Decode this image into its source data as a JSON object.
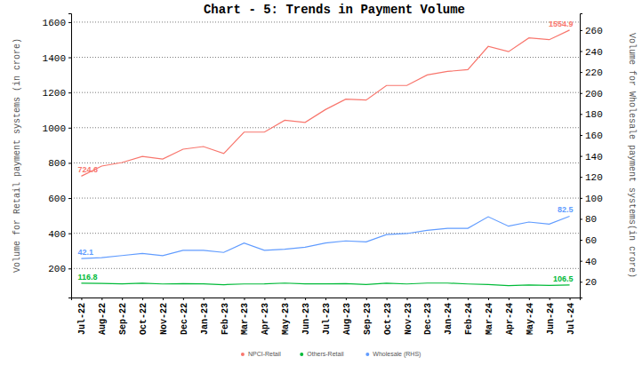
{
  "chart_data": {
    "type": "line",
    "title": "Chart - 5: Trends in Payment Volume",
    "y_label": "Volume for Retail payment systems (in crore)",
    "y2_label": "Volume for Wholesale payment systems(in crore)",
    "categories": [
      "Jul-22",
      "Aug-22",
      "Sep-22",
      "Oct-22",
      "Nov-22",
      "Dec-22",
      "Jan-23",
      "Feb-23",
      "Mar-23",
      "Apr-23",
      "May-23",
      "Jun-23",
      "Jul-23",
      "Aug-23",
      "Sep-23",
      "Oct-23",
      "Nov-23",
      "Dec-23",
      "Jan-24",
      "Feb-24",
      "Mar-24",
      "Apr-24",
      "May-24",
      "Jun-24",
      "Jul-24"
    ],
    "series": [
      {
        "name": "NPCI-Retail",
        "color": "#F8766D",
        "values": [
          724.6,
          782,
          802,
          837,
          822,
          878,
          893,
          853,
          975,
          975,
          1042,
          1030,
          1103,
          1162,
          1157,
          1240,
          1240,
          1300,
          1320,
          1330,
          1462,
          1432,
          1510,
          1500,
          1554.9
        ]
      },
      {
        "name": "Others-Retail",
        "color": "#00BA38",
        "values": [
          116.8,
          115,
          113,
          116,
          112,
          114,
          113,
          108,
          112,
          113,
          117,
          113,
          113,
          114,
          109,
          116,
          112,
          117,
          117,
          112,
          109,
          103,
          106,
          104,
          106.5
        ]
      },
      {
        "name": "Wholesale (RHS)",
        "color": "#619CFF",
        "axis": "y2",
        "values": [
          42.1,
          43,
          45,
          47,
          45,
          50,
          50,
          48,
          57,
          50,
          51,
          53,
          57,
          59,
          58,
          65,
          66,
          69,
          71,
          71,
          82,
          73,
          77,
          75,
          82.5
        ]
      }
    ],
    "ylim": [
      35,
      1650
    ],
    "yticks": [
      200,
      400,
      600,
      800,
      1000,
      1200,
      1400,
      1600
    ],
    "y2lim": [
      5,
      276
    ],
    "y2ticks": [
      20,
      40,
      60,
      80,
      100,
      120,
      140,
      160,
      180,
      200,
      220,
      240,
      260
    ],
    "grid": true,
    "legend": "bottom"
  }
}
